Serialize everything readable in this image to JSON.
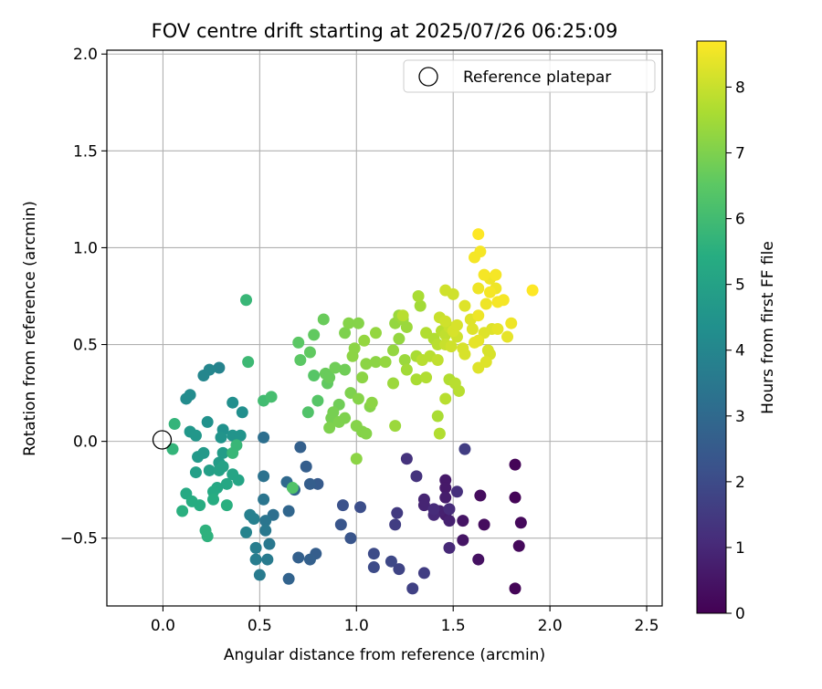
{
  "chart_data": {
    "type": "scatter",
    "title": "FOV centre drift starting at 2025/07/26 06:25:09",
    "xlabel": "Angular distance from reference (arcmin)",
    "ylabel": "Rotation from reference (arcmin)",
    "xlim": [
      -0.29,
      2.58
    ],
    "ylim": [
      -0.85,
      2.02
    ],
    "grid": true,
    "x_ticks": [
      0.0,
      0.5,
      1.0,
      1.5,
      2.0,
      2.5
    ],
    "x_tick_labels": [
      "0.0",
      "0.5",
      "1.0",
      "1.5",
      "2.0",
      "2.5"
    ],
    "y_ticks": [
      -0.5,
      0.0,
      0.5,
      1.0,
      1.5,
      2.0
    ],
    "y_tick_labels": [
      "−0.5",
      "0.0",
      "0.5",
      "1.0",
      "1.5",
      "2.0"
    ],
    "colorbar": {
      "label": "Hours from first FF file",
      "min": 0,
      "max": 8.7,
      "ticks": [
        0,
        1,
        2,
        3,
        4,
        5,
        6,
        7,
        8
      ],
      "tick_labels": [
        "0",
        "1",
        "2",
        "3",
        "4",
        "5",
        "6",
        "7",
        "8"
      ],
      "colormap": "viridis"
    },
    "legend": {
      "position": "top-right",
      "entries": [
        "Reference platepar"
      ]
    },
    "reference_point": {
      "x": 0.0,
      "y": 0.0
    },
    "points": [
      {
        "x": 1.82,
        "y": -0.12,
        "h": 0.1
      },
      {
        "x": 1.82,
        "y": -0.29,
        "h": 0.1
      },
      {
        "x": 1.85,
        "y": -0.42,
        "h": 0.2
      },
      {
        "x": 1.84,
        "y": -0.54,
        "h": 0.2
      },
      {
        "x": 1.82,
        "y": -0.76,
        "h": 0.1
      },
      {
        "x": 1.64,
        "y": -0.28,
        "h": 0.3
      },
      {
        "x": 1.66,
        "y": -0.43,
        "h": 0.3
      },
      {
        "x": 1.63,
        "y": -0.61,
        "h": 0.4
      },
      {
        "x": 1.55,
        "y": -0.41,
        "h": 0.5
      },
      {
        "x": 1.55,
        "y": -0.51,
        "h": 0.5
      },
      {
        "x": 1.46,
        "y": -0.2,
        "h": 0.6
      },
      {
        "x": 1.46,
        "y": -0.24,
        "h": 0.6
      },
      {
        "x": 1.46,
        "y": -0.29,
        "h": 0.7
      },
      {
        "x": 1.46,
        "y": -0.38,
        "h": 0.7
      },
      {
        "x": 1.43,
        "y": -0.36,
        "h": 0.8
      },
      {
        "x": 1.35,
        "y": -0.3,
        "h": 0.9
      },
      {
        "x": 1.35,
        "y": -0.33,
        "h": 0.9
      },
      {
        "x": 1.48,
        "y": -0.41,
        "h": 0.8
      },
      {
        "x": 1.48,
        "y": -0.55,
        "h": 1.0
      },
      {
        "x": 1.4,
        "y": -0.38,
        "h": 1.0
      },
      {
        "x": 1.4,
        "y": -0.35,
        "h": 1.1
      },
      {
        "x": 1.48,
        "y": -0.35,
        "h": 1.1
      },
      {
        "x": 1.52,
        "y": -0.26,
        "h": 1.2
      },
      {
        "x": 1.31,
        "y": -0.18,
        "h": 1.3
      },
      {
        "x": 1.26,
        "y": -0.09,
        "h": 1.3
      },
      {
        "x": 1.56,
        "y": -0.04,
        "h": 1.6
      },
      {
        "x": 1.21,
        "y": -0.37,
        "h": 1.5
      },
      {
        "x": 1.2,
        "y": -0.43,
        "h": 1.6
      },
      {
        "x": 1.35,
        "y": -0.68,
        "h": 1.6
      },
      {
        "x": 1.29,
        "y": -0.76,
        "h": 1.7
      },
      {
        "x": 1.22,
        "y": -0.66,
        "h": 1.8
      },
      {
        "x": 1.18,
        "y": -0.62,
        "h": 1.9
      },
      {
        "x": 1.09,
        "y": -0.58,
        "h": 2.0
      },
      {
        "x": 1.09,
        "y": -0.65,
        "h": 2.0
      },
      {
        "x": 1.02,
        "y": -0.34,
        "h": 2.1
      },
      {
        "x": 0.93,
        "y": -0.33,
        "h": 2.2
      },
      {
        "x": 0.92,
        "y": -0.43,
        "h": 2.3
      },
      {
        "x": 0.97,
        "y": -0.5,
        "h": 2.3
      },
      {
        "x": 0.8,
        "y": -0.22,
        "h": 2.5
      },
      {
        "x": 0.76,
        "y": -0.22,
        "h": 2.6
      },
      {
        "x": 0.74,
        "y": -0.13,
        "h": 2.6
      },
      {
        "x": 0.71,
        "y": -0.03,
        "h": 2.7
      },
      {
        "x": 0.79,
        "y": -0.58,
        "h": 2.6
      },
      {
        "x": 0.76,
        "y": -0.61,
        "h": 2.7
      },
      {
        "x": 0.7,
        "y": -0.6,
        "h": 2.7
      },
      {
        "x": 0.65,
        "y": -0.71,
        "h": 2.8
      },
      {
        "x": 0.68,
        "y": -0.25,
        "h": 2.9
      },
      {
        "x": 0.65,
        "y": -0.36,
        "h": 2.9
      },
      {
        "x": 0.64,
        "y": -0.21,
        "h": 3.0
      },
      {
        "x": 0.57,
        "y": -0.38,
        "h": 3.2
      },
      {
        "x": 0.52,
        "y": 0.02,
        "h": 3.2
      },
      {
        "x": 0.52,
        "y": -0.18,
        "h": 3.3
      },
      {
        "x": 0.52,
        "y": -0.3,
        "h": 3.4
      },
      {
        "x": 0.53,
        "y": -0.41,
        "h": 3.4
      },
      {
        "x": 0.53,
        "y": -0.46,
        "h": 3.5
      },
      {
        "x": 0.55,
        "y": -0.53,
        "h": 3.5
      },
      {
        "x": 0.54,
        "y": -0.61,
        "h": 3.6
      },
      {
        "x": 0.5,
        "y": -0.69,
        "h": 3.6
      },
      {
        "x": 0.48,
        "y": -0.61,
        "h": 3.7
      },
      {
        "x": 0.48,
        "y": -0.55,
        "h": 3.7
      },
      {
        "x": 0.45,
        "y": -0.38,
        "h": 3.8
      },
      {
        "x": 0.47,
        "y": -0.4,
        "h": 3.8
      },
      {
        "x": 0.43,
        "y": -0.47,
        "h": 3.9
      },
      {
        "x": 0.29,
        "y": 0.38,
        "h": 3.9
      },
      {
        "x": 0.24,
        "y": 0.37,
        "h": 4.0
      },
      {
        "x": 0.21,
        "y": 0.34,
        "h": 4.0
      },
      {
        "x": 0.14,
        "y": 0.24,
        "h": 4.2
      },
      {
        "x": 0.12,
        "y": 0.22,
        "h": 4.2
      },
      {
        "x": 0.41,
        "y": 0.15,
        "h": 4.3
      },
      {
        "x": 0.36,
        "y": 0.2,
        "h": 4.3
      },
      {
        "x": 0.23,
        "y": 0.1,
        "h": 4.4
      },
      {
        "x": 0.31,
        "y": 0.06,
        "h": 4.4
      },
      {
        "x": 0.3,
        "y": 0.02,
        "h": 4.5
      },
      {
        "x": 0.36,
        "y": 0.03,
        "h": 4.5
      },
      {
        "x": 0.4,
        "y": 0.03,
        "h": 4.5
      },
      {
        "x": 0.17,
        "y": 0.03,
        "h": 4.6
      },
      {
        "x": 0.14,
        "y": 0.05,
        "h": 4.6
      },
      {
        "x": 0.18,
        "y": -0.08,
        "h": 4.7
      },
      {
        "x": 0.21,
        "y": -0.06,
        "h": 4.7
      },
      {
        "x": 0.31,
        "y": -0.06,
        "h": 4.8
      },
      {
        "x": 0.29,
        "y": -0.11,
        "h": 4.8
      },
      {
        "x": 0.17,
        "y": -0.16,
        "h": 4.9
      },
      {
        "x": 0.24,
        "y": -0.15,
        "h": 4.9
      },
      {
        "x": 0.29,
        "y": -0.15,
        "h": 5.0
      },
      {
        "x": 0.31,
        "y": -0.13,
        "h": 5.0
      },
      {
        "x": 0.36,
        "y": -0.17,
        "h": 5.1
      },
      {
        "x": 0.39,
        "y": -0.2,
        "h": 5.1
      },
      {
        "x": 0.33,
        "y": -0.22,
        "h": 5.2
      },
      {
        "x": 0.28,
        "y": -0.24,
        "h": 5.2
      },
      {
        "x": 0.26,
        "y": -0.26,
        "h": 5.3
      },
      {
        "x": 0.12,
        "y": -0.27,
        "h": 5.3
      },
      {
        "x": 0.15,
        "y": -0.31,
        "h": 5.4
      },
      {
        "x": 0.19,
        "y": -0.33,
        "h": 5.4
      },
      {
        "x": 0.26,
        "y": -0.3,
        "h": 5.4
      },
      {
        "x": 0.33,
        "y": -0.33,
        "h": 5.5
      },
      {
        "x": 0.1,
        "y": -0.36,
        "h": 5.5
      },
      {
        "x": 0.22,
        "y": -0.46,
        "h": 5.6
      },
      {
        "x": 0.23,
        "y": -0.49,
        "h": 5.6
      },
      {
        "x": 0.05,
        "y": -0.04,
        "h": 5.7
      },
      {
        "x": 0.06,
        "y": 0.09,
        "h": 5.7
      },
      {
        "x": 0.38,
        "y": -0.02,
        "h": 5.8
      },
      {
        "x": 0.36,
        "y": -0.06,
        "h": 5.8
      },
      {
        "x": 0.43,
        "y": 0.73,
        "h": 5.8
      },
      {
        "x": 0.44,
        "y": 0.41,
        "h": 5.9
      },
      {
        "x": 0.52,
        "y": 0.21,
        "h": 6.0
      },
      {
        "x": 0.56,
        "y": 0.23,
        "h": 6.1
      },
      {
        "x": 0.67,
        "y": -0.24,
        "h": 6.3
      },
      {
        "x": 0.75,
        "y": 0.15,
        "h": 6.3
      },
      {
        "x": 0.8,
        "y": 0.21,
        "h": 6.4
      },
      {
        "x": 0.78,
        "y": 0.34,
        "h": 6.4
      },
      {
        "x": 0.71,
        "y": 0.42,
        "h": 6.5
      },
      {
        "x": 0.7,
        "y": 0.51,
        "h": 6.5
      },
      {
        "x": 0.76,
        "y": 0.46,
        "h": 6.6
      },
      {
        "x": 0.78,
        "y": 0.55,
        "h": 6.6
      },
      {
        "x": 0.83,
        "y": 0.63,
        "h": 6.7
      },
      {
        "x": 0.85,
        "y": 0.3,
        "h": 6.6
      },
      {
        "x": 0.84,
        "y": 0.35,
        "h": 6.7
      },
      {
        "x": 0.86,
        "y": 0.33,
        "h": 6.7
      },
      {
        "x": 0.89,
        "y": 0.38,
        "h": 6.8
      },
      {
        "x": 0.94,
        "y": 0.37,
        "h": 6.8
      },
      {
        "x": 0.91,
        "y": 0.19,
        "h": 6.8
      },
      {
        "x": 0.88,
        "y": 0.15,
        "h": 6.9
      },
      {
        "x": 0.87,
        "y": 0.12,
        "h": 6.9
      },
      {
        "x": 0.86,
        "y": 0.07,
        "h": 7.0
      },
      {
        "x": 0.91,
        "y": 0.1,
        "h": 7.0
      },
      {
        "x": 0.94,
        "y": 0.12,
        "h": 7.0
      },
      {
        "x": 0.97,
        "y": 0.25,
        "h": 7.0
      },
      {
        "x": 1.0,
        "y": 0.08,
        "h": 7.1
      },
      {
        "x": 1.03,
        "y": 0.05,
        "h": 7.1
      },
      {
        "x": 1.05,
        "y": 0.04,
        "h": 7.1
      },
      {
        "x": 1.0,
        "y": -0.09,
        "h": 7.2
      },
      {
        "x": 1.01,
        "y": 0.22,
        "h": 7.1
      },
      {
        "x": 1.07,
        "y": 0.18,
        "h": 7.1
      },
      {
        "x": 1.08,
        "y": 0.2,
        "h": 7.2
      },
      {
        "x": 1.03,
        "y": 0.33,
        "h": 7.2
      },
      {
        "x": 1.05,
        "y": 0.4,
        "h": 7.2
      },
      {
        "x": 1.1,
        "y": 0.41,
        "h": 7.2
      },
      {
        "x": 1.15,
        "y": 0.41,
        "h": 7.3
      },
      {
        "x": 0.98,
        "y": 0.44,
        "h": 7.2
      },
      {
        "x": 0.99,
        "y": 0.48,
        "h": 7.2
      },
      {
        "x": 1.04,
        "y": 0.52,
        "h": 7.3
      },
      {
        "x": 1.1,
        "y": 0.56,
        "h": 7.3
      },
      {
        "x": 0.96,
        "y": 0.61,
        "h": 7.1
      },
      {
        "x": 1.01,
        "y": 0.61,
        "h": 7.1
      },
      {
        "x": 0.94,
        "y": 0.56,
        "h": 7.0
      },
      {
        "x": 1.19,
        "y": 0.47,
        "h": 7.3
      },
      {
        "x": 1.22,
        "y": 0.53,
        "h": 7.3
      },
      {
        "x": 1.2,
        "y": 0.61,
        "h": 7.3
      },
      {
        "x": 1.22,
        "y": 0.65,
        "h": 7.4
      },
      {
        "x": 1.24,
        "y": 0.63,
        "h": 7.4
      },
      {
        "x": 1.19,
        "y": 0.3,
        "h": 7.4
      },
      {
        "x": 1.26,
        "y": 0.37,
        "h": 7.5
      },
      {
        "x": 1.25,
        "y": 0.42,
        "h": 7.4
      },
      {
        "x": 1.2,
        "y": 0.08,
        "h": 7.4
      },
      {
        "x": 1.26,
        "y": 0.59,
        "h": 7.4
      },
      {
        "x": 1.24,
        "y": 0.65,
        "h": 7.8
      },
      {
        "x": 1.33,
        "y": 0.7,
        "h": 7.5
      },
      {
        "x": 1.32,
        "y": 0.75,
        "h": 7.6
      },
      {
        "x": 1.31,
        "y": 0.44,
        "h": 7.6
      },
      {
        "x": 1.31,
        "y": 0.32,
        "h": 7.6
      },
      {
        "x": 1.36,
        "y": 0.56,
        "h": 7.7
      },
      {
        "x": 1.4,
        "y": 0.53,
        "h": 7.7
      },
      {
        "x": 1.42,
        "y": 0.5,
        "h": 7.8
      },
      {
        "x": 1.44,
        "y": 0.57,
        "h": 7.8
      },
      {
        "x": 1.46,
        "y": 0.55,
        "h": 7.9
      },
      {
        "x": 1.34,
        "y": 0.42,
        "h": 7.8
      },
      {
        "x": 1.38,
        "y": 0.44,
        "h": 7.8
      },
      {
        "x": 1.42,
        "y": 0.42,
        "h": 7.9
      },
      {
        "x": 1.46,
        "y": 0.5,
        "h": 8.0
      },
      {
        "x": 1.48,
        "y": 0.59,
        "h": 8.0
      },
      {
        "x": 1.36,
        "y": 0.33,
        "h": 7.7
      },
      {
        "x": 1.42,
        "y": 0.13,
        "h": 7.6
      },
      {
        "x": 1.43,
        "y": 0.04,
        "h": 7.7
      },
      {
        "x": 1.46,
        "y": 0.22,
        "h": 7.8
      },
      {
        "x": 1.48,
        "y": 0.32,
        "h": 7.7
      },
      {
        "x": 1.51,
        "y": 0.3,
        "h": 7.8
      },
      {
        "x": 1.53,
        "y": 0.26,
        "h": 7.8
      },
      {
        "x": 1.49,
        "y": 0.49,
        "h": 8.1
      },
      {
        "x": 1.52,
        "y": 0.54,
        "h": 8.1
      },
      {
        "x": 1.55,
        "y": 0.48,
        "h": 8.2
      },
      {
        "x": 1.56,
        "y": 0.45,
        "h": 8.2
      },
      {
        "x": 1.43,
        "y": 0.64,
        "h": 8.0
      },
      {
        "x": 1.46,
        "y": 0.62,
        "h": 8.1
      },
      {
        "x": 1.5,
        "y": 0.57,
        "h": 8.2
      },
      {
        "x": 1.52,
        "y": 0.6,
        "h": 8.2
      },
      {
        "x": 1.46,
        "y": 0.78,
        "h": 8.1
      },
      {
        "x": 1.5,
        "y": 0.76,
        "h": 8.1
      },
      {
        "x": 1.56,
        "y": 0.7,
        "h": 8.3
      },
      {
        "x": 1.59,
        "y": 0.63,
        "h": 8.3
      },
      {
        "x": 1.6,
        "y": 0.58,
        "h": 8.3
      },
      {
        "x": 1.63,
        "y": 0.52,
        "h": 8.4
      },
      {
        "x": 1.61,
        "y": 0.51,
        "h": 8.4
      },
      {
        "x": 1.63,
        "y": 0.38,
        "h": 8.3
      },
      {
        "x": 1.67,
        "y": 0.41,
        "h": 8.3
      },
      {
        "x": 1.69,
        "y": 0.45,
        "h": 8.2
      },
      {
        "x": 1.68,
        "y": 0.47,
        "h": 8.2
      },
      {
        "x": 1.66,
        "y": 0.56,
        "h": 8.3
      },
      {
        "x": 1.7,
        "y": 0.58,
        "h": 8.3
      },
      {
        "x": 1.73,
        "y": 0.58,
        "h": 8.4
      },
      {
        "x": 1.78,
        "y": 0.54,
        "h": 8.4
      },
      {
        "x": 1.8,
        "y": 0.61,
        "h": 8.5
      },
      {
        "x": 1.63,
        "y": 0.65,
        "h": 8.5
      },
      {
        "x": 1.67,
        "y": 0.71,
        "h": 8.5
      },
      {
        "x": 1.69,
        "y": 0.77,
        "h": 8.6
      },
      {
        "x": 1.73,
        "y": 0.72,
        "h": 8.6
      },
      {
        "x": 1.76,
        "y": 0.73,
        "h": 8.6
      },
      {
        "x": 1.72,
        "y": 0.79,
        "h": 8.5
      },
      {
        "x": 1.69,
        "y": 0.84,
        "h": 8.5
      },
      {
        "x": 1.66,
        "y": 0.86,
        "h": 8.6
      },
      {
        "x": 1.63,
        "y": 0.79,
        "h": 8.5
      },
      {
        "x": 1.61,
        "y": 0.95,
        "h": 8.6
      },
      {
        "x": 1.64,
        "y": 0.98,
        "h": 8.6
      },
      {
        "x": 1.63,
        "y": 1.07,
        "h": 8.7
      },
      {
        "x": 1.91,
        "y": 0.78,
        "h": 8.7
      },
      {
        "x": 1.72,
        "y": 0.86,
        "h": 8.6
      }
    ]
  }
}
